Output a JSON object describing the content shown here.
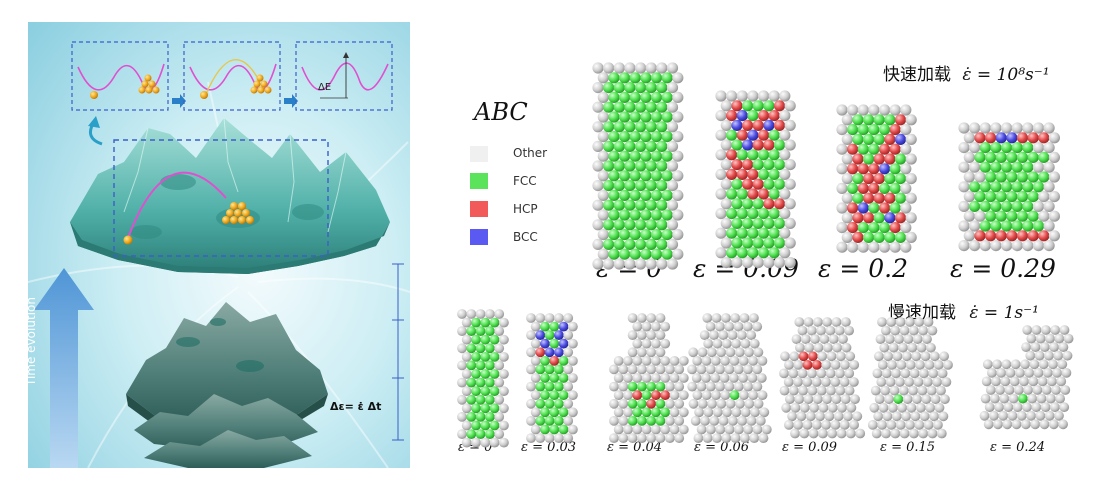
{
  "left_panel": {
    "time_arrow_label": "Time evolution",
    "strain_step_label": "Δε= ε̇ Δt",
    "energy_barrier_label": "ΔE"
  },
  "legend": {
    "title": "ABC",
    "items": [
      {
        "label": "Other",
        "color": "#f0f0f0"
      },
      {
        "label": "FCC",
        "color": "#5be35b"
      },
      {
        "label": "HCP",
        "color": "#f25a5a"
      },
      {
        "label": "BCC",
        "color": "#5a5af2"
      }
    ]
  },
  "fast": {
    "label_cn": "快速加载",
    "label_rate": "ε̇ = 10⁸s⁻¹",
    "strains": [
      "ε = 0",
      "ε = 0.09",
      "ε = 0.2",
      "ε = 0.29"
    ]
  },
  "slow": {
    "label_cn": "慢速加载",
    "label_rate": "ε̇ = 1s⁻¹",
    "strains": [
      "ε = 0",
      "ε = 0.03",
      "ε = 0.04",
      "ε = 0.06",
      "ε = 0.09",
      "ε = 0.15",
      "ε = 0.24"
    ]
  },
  "colors": {
    "other": "#e6e6e6",
    "fcc": "#4ee04e",
    "hcp": "#e24848",
    "bcc": "#4b4be0",
    "panel_bg": "#bfe5ee",
    "terrain": "#5fb4b2",
    "terrain_dark": "#2f7f78",
    "gold": "#f2ad1d",
    "magenta": "#e04fd0",
    "frame": "#3b5fc9"
  }
}
